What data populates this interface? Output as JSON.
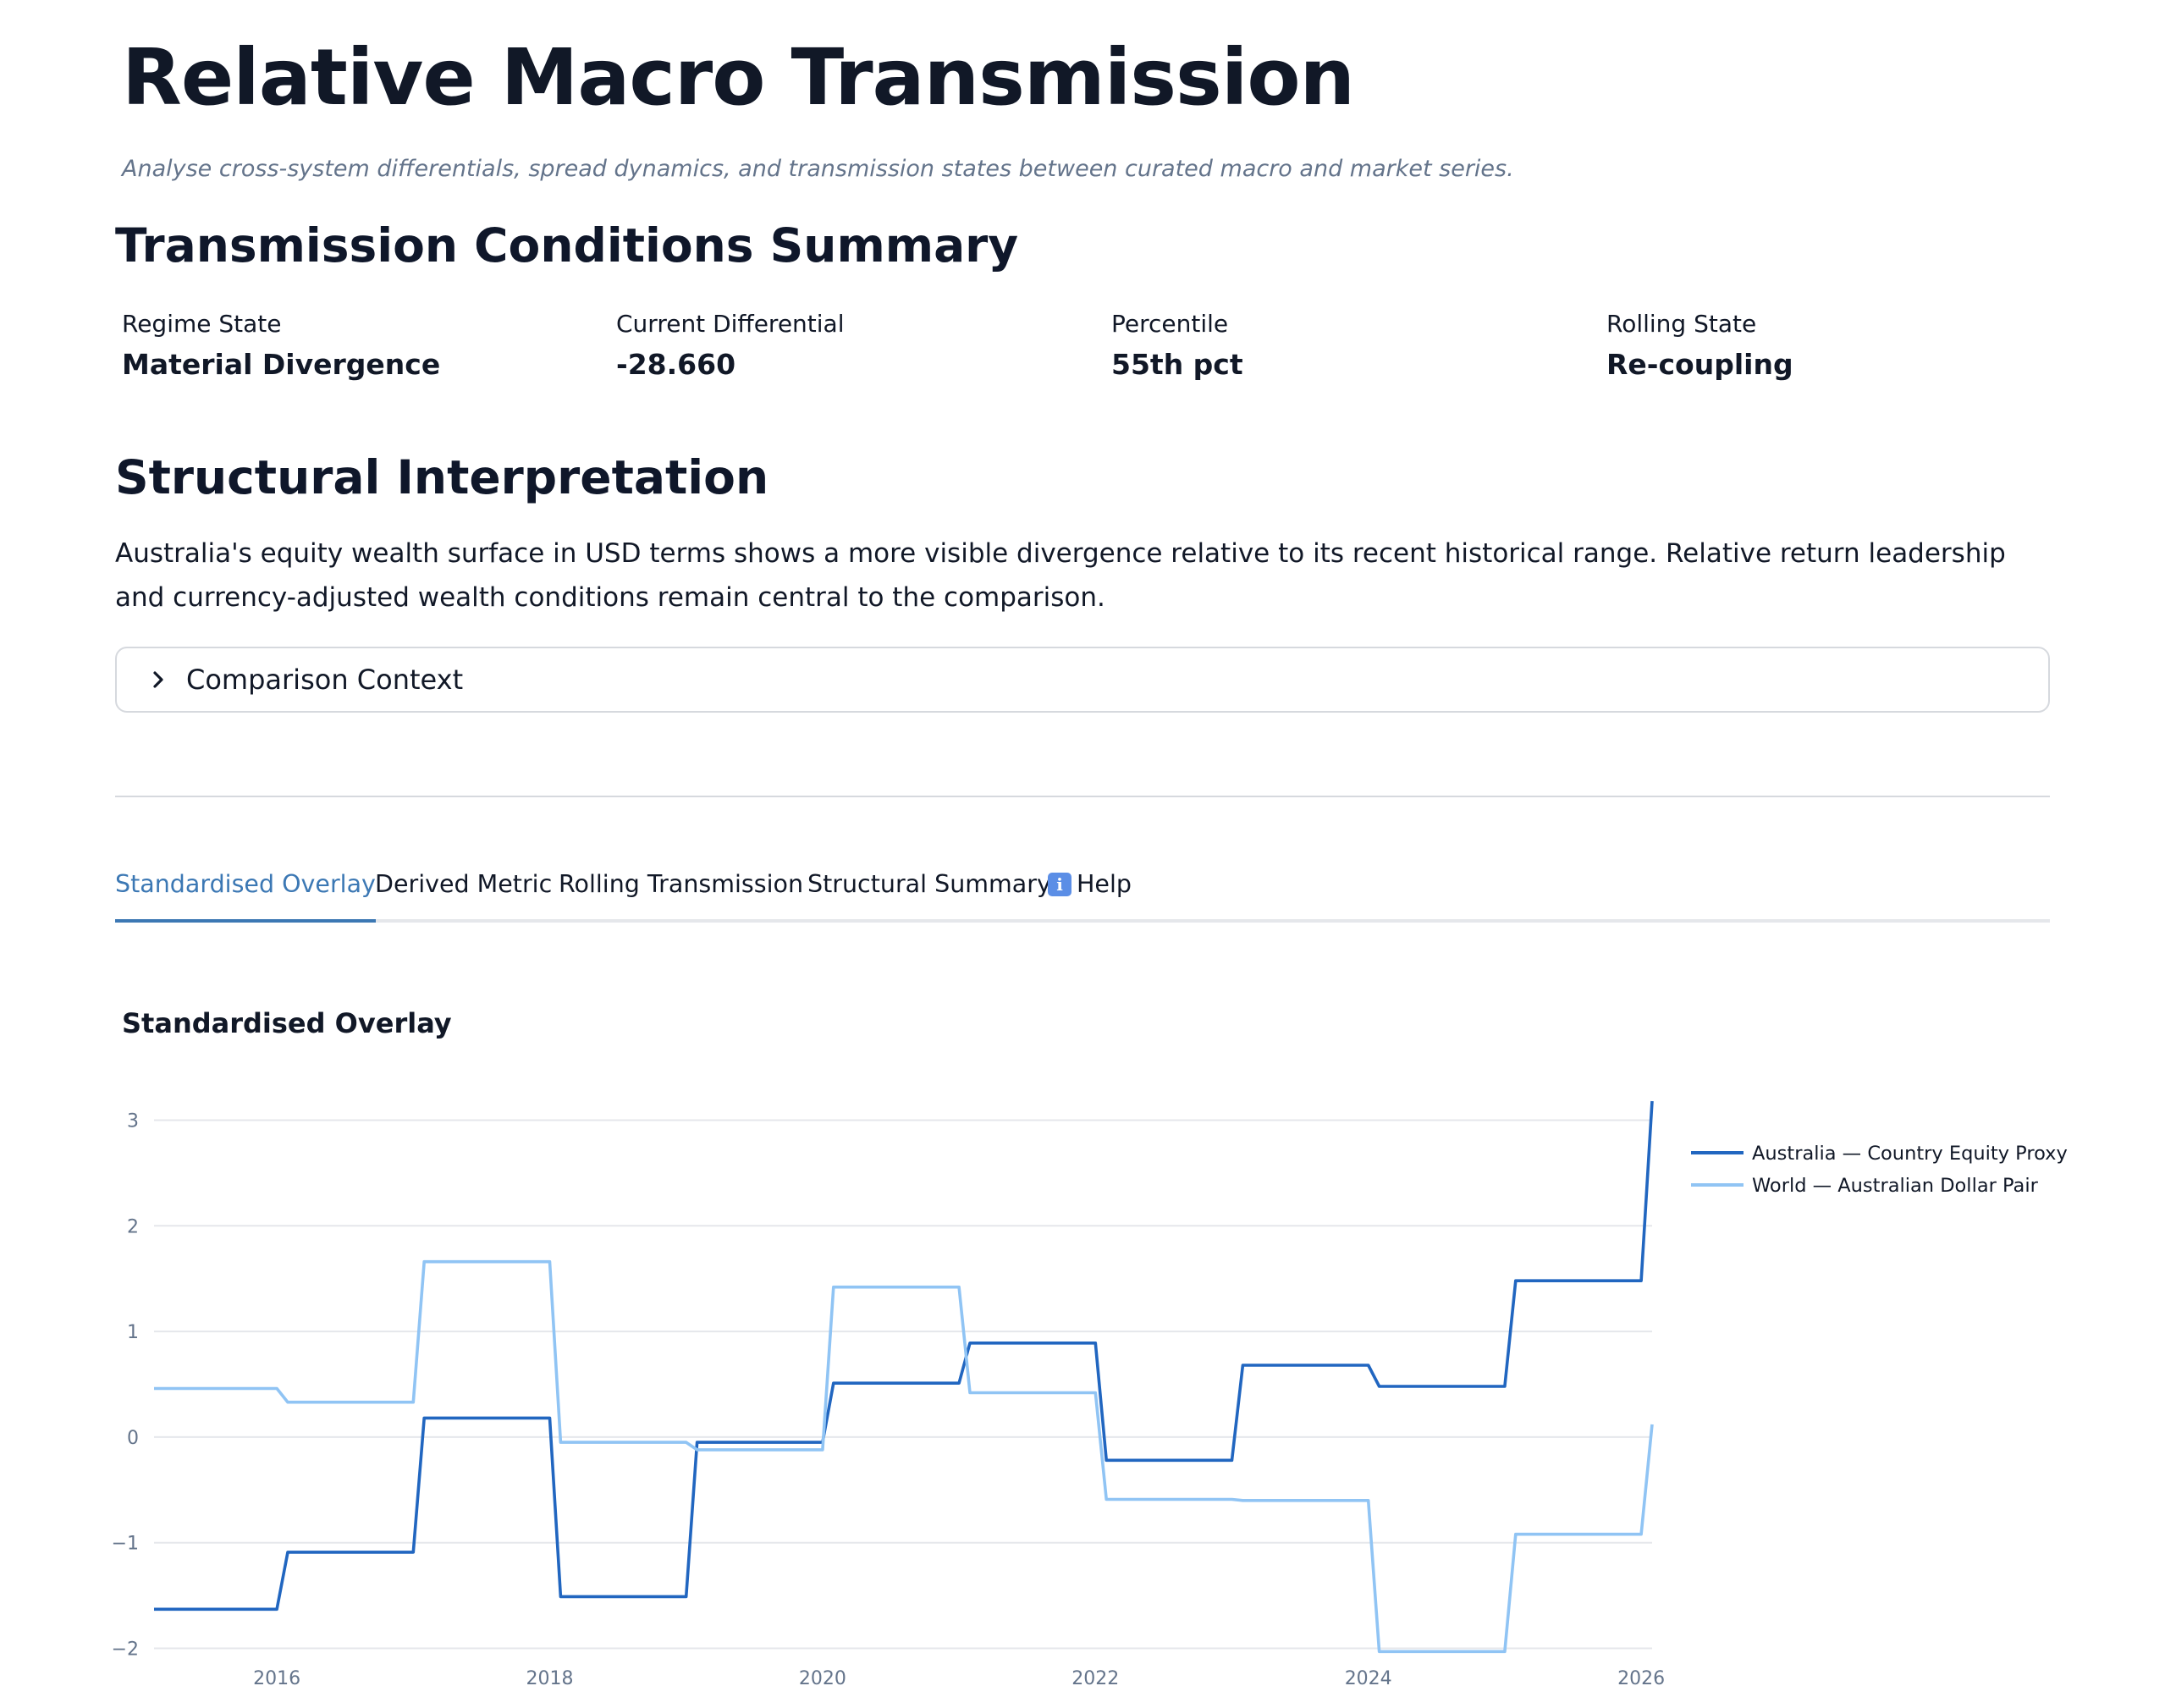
{
  "header": {
    "title": "Relative Macro Transmission",
    "subtitle": "Analyse cross-system differentials, spread dynamics, and transmission states between curated macro and market series."
  },
  "summary": {
    "heading": "Transmission Conditions Summary",
    "metrics": [
      {
        "label": "Regime State",
        "value": "Material Divergence"
      },
      {
        "label": "Current Differential",
        "value": "-28.660"
      },
      {
        "label": "Percentile",
        "value": "55th pct"
      },
      {
        "label": "Rolling State",
        "value": "Re-coupling"
      }
    ]
  },
  "interpretation": {
    "heading": "Structural Interpretation",
    "text": "Australia's equity wealth surface in USD terms shows a more visible divergence relative to its recent historical range. Relative return leadership and currency-adjusted wealth conditions remain central to the comparison."
  },
  "expander": {
    "label": "Comparison Context",
    "icon": "chevron-right-icon"
  },
  "tabs": {
    "items": [
      "Standardised Overlay",
      "Derived Metric",
      "Rolling Transmission",
      "Structural Summary",
      "Help"
    ],
    "active_index": 0,
    "help_icon": "info-icon"
  },
  "chart_section": {
    "heading": "Standardised Overlay"
  },
  "chart_data": {
    "type": "line",
    "title": "Standardised Overlay",
    "xlabel": "",
    "ylabel": "",
    "x_ticks": [
      "2016",
      "2018",
      "2020",
      "2022",
      "2024",
      "2026"
    ],
    "y_ticks": [
      "3",
      "2",
      "1",
      "0",
      "−1",
      "−2"
    ],
    "xlim": [
      2015.1,
      2026.08
    ],
    "ylim": [
      -2.1,
      3.3
    ],
    "grid": true,
    "legend_position": "top-right",
    "series": [
      {
        "name": "Australia — Country Equity Proxy",
        "color": "#2166c0",
        "points": [
          [
            2015.1,
            -1.63
          ],
          [
            2016.0,
            -1.63
          ],
          [
            2016.08,
            -1.09
          ],
          [
            2017.0,
            -1.09
          ],
          [
            2017.08,
            0.18
          ],
          [
            2018.0,
            0.18
          ],
          [
            2018.08,
            -1.51
          ],
          [
            2019.0,
            -1.51
          ],
          [
            2019.08,
            -0.05
          ],
          [
            2020.0,
            -0.05
          ],
          [
            2020.08,
            0.51
          ],
          [
            2021.0,
            0.51
          ],
          [
            2021.08,
            0.89
          ],
          [
            2022.0,
            0.89
          ],
          [
            2022.08,
            -0.22
          ],
          [
            2023.0,
            -0.22
          ],
          [
            2023.08,
            0.68
          ],
          [
            2024.0,
            0.68
          ],
          [
            2024.08,
            0.48
          ],
          [
            2025.0,
            0.48
          ],
          [
            2025.08,
            1.48
          ],
          [
            2026.0,
            1.48
          ],
          [
            2026.08,
            3.18
          ]
        ]
      },
      {
        "name": "World — Australian Dollar Pair",
        "color": "#90c4f4",
        "points": [
          [
            2015.1,
            0.46
          ],
          [
            2016.0,
            0.46
          ],
          [
            2016.08,
            0.33
          ],
          [
            2017.0,
            0.33
          ],
          [
            2017.08,
            1.66
          ],
          [
            2018.0,
            1.66
          ],
          [
            2018.08,
            -0.05
          ],
          [
            2019.0,
            -0.05
          ],
          [
            2019.08,
            -0.12
          ],
          [
            2020.0,
            -0.12
          ],
          [
            2020.08,
            1.42
          ],
          [
            2021.0,
            1.42
          ],
          [
            2021.08,
            0.42
          ],
          [
            2022.0,
            0.42
          ],
          [
            2022.08,
            -0.59
          ],
          [
            2023.0,
            -0.59
          ],
          [
            2023.08,
            -0.6
          ],
          [
            2024.0,
            -0.6
          ],
          [
            2024.08,
            -2.03
          ],
          [
            2025.0,
            -2.03
          ],
          [
            2025.08,
            -0.92
          ],
          [
            2026.0,
            -0.92
          ],
          [
            2026.08,
            0.12
          ]
        ]
      }
    ]
  }
}
